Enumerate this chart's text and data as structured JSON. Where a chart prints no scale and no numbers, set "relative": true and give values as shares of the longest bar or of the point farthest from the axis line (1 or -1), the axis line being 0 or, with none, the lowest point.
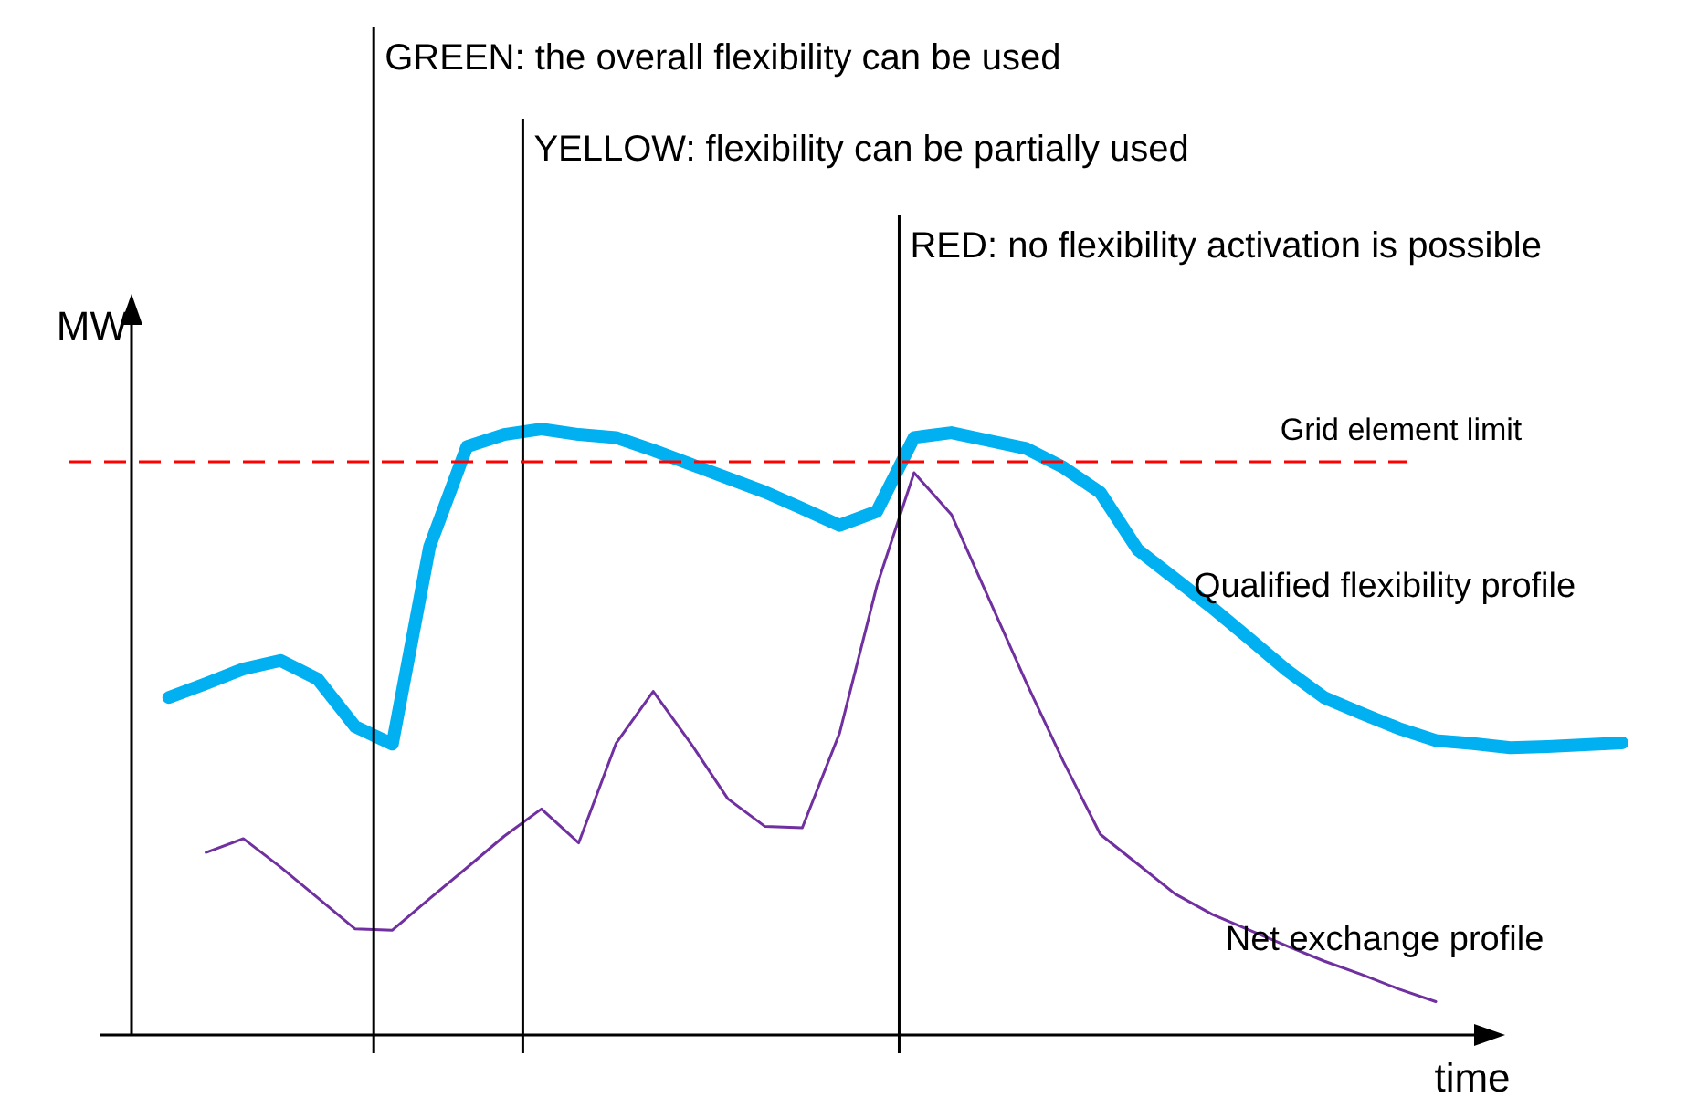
{
  "chart_data": {
    "type": "line",
    "relative": true,
    "legend": false,
    "xlabel": "time",
    "ylabel": "MW",
    "categories": [
      null,
      null,
      null,
      null,
      null,
      null,
      null,
      null,
      null,
      null,
      null,
      null,
      null,
      null,
      null,
      null,
      null,
      null,
      null,
      null,
      null,
      null,
      null,
      null,
      null,
      null,
      null,
      null,
      null,
      null,
      null,
      null,
      null,
      null,
      null,
      null,
      null,
      null,
      null,
      null,
      null
    ],
    "series": [
      {
        "name": "Qualified flexibility profile",
        "color": "#00b0f0",
        "values": [
          null,
          0.557,
          0.58,
          0.604,
          0.618,
          0.587,
          0.509,
          0.48,
          0.806,
          0.971,
          0.991,
          1.0,
          0.991,
          0.986,
          0.965,
          0.942,
          0.919,
          0.896,
          0.869,
          0.841,
          0.864,
          0.986,
          0.994,
          0.981,
          0.968,
          0.937,
          0.895,
          0.801,
          0.753,
          0.705,
          0.654,
          0.602,
          0.557,
          0.531,
          0.506,
          0.486,
          0.481,
          0.474,
          0.476,
          0.479,
          0.482
        ]
      },
      {
        "name": "Net exchange profile",
        "color": "#7030a0",
        "values": [
          null,
          null,
          0.301,
          0.324,
          0.277,
          0.226,
          0.175,
          0.173,
          0.225,
          0.276,
          0.328,
          0.373,
          0.317,
          0.481,
          0.567,
          0.482,
          0.39,
          0.344,
          0.342,
          0.498,
          0.741,
          0.928,
          0.859,
          0.721,
          0.583,
          0.452,
          0.331,
          0.282,
          0.233,
          0.199,
          0.173,
          0.147,
          0.122,
          0.1,
          0.076,
          0.055,
          null,
          null,
          null,
          null,
          null
        ]
      }
    ],
    "ref_lines": [
      {
        "axis": "y",
        "value": 0.946,
        "label": "Grid element limit",
        "color": "#ff0000",
        "line_style": "dashed"
      }
    ],
    "annotations": [
      "GREEN: the overall flexibility can be used",
      "YELLOW: flexibility can be partially used",
      "RED: no flexibility activation is possible"
    ]
  }
}
